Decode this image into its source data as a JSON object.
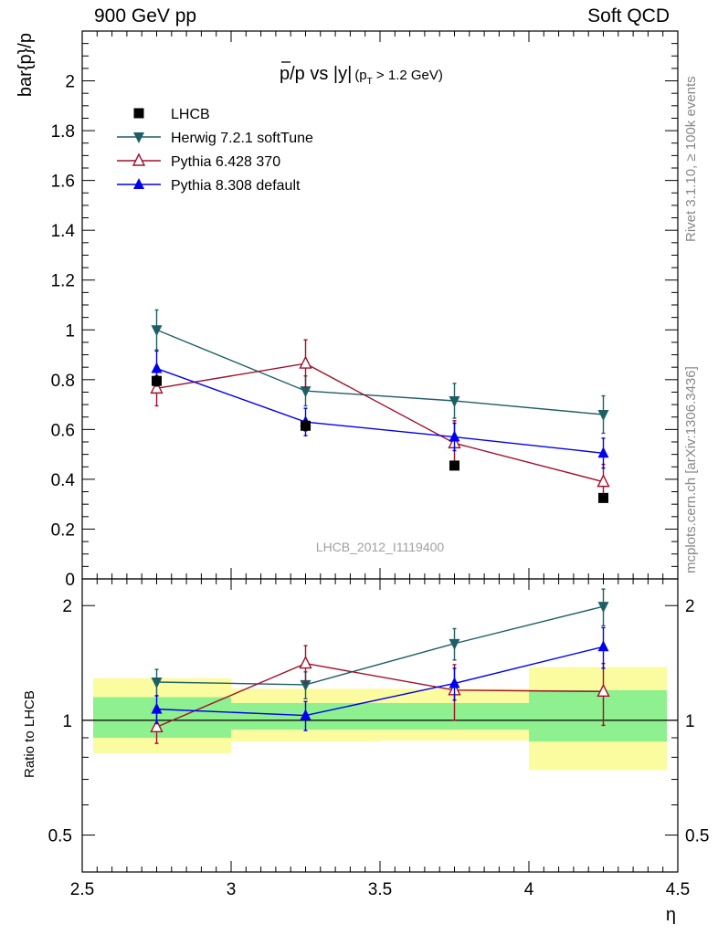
{
  "header": {
    "left": "900 GeV pp",
    "right": "Soft QCD"
  },
  "side": {
    "rivet": "Rivet 3.1.10, ≥ 100k events",
    "mcplots": "mcplots.cern.ch [arXiv:1306.3436]"
  },
  "chart_data": [
    {
      "type": "scatter",
      "title": "p̅/p vs |y|",
      "title_parts": {
        "main": "p/p vs |y|",
        "cut": "(p",
        "sub": "T",
        "cut_end": " > 1.2 GeV)"
      },
      "ylabel": "bar{p}/p",
      "xlabel": "",
      "watermark": "LHCB_2012_I1119400",
      "xlim": [
        2.5,
        4.5
      ],
      "ylim": [
        0,
        2.2
      ],
      "yticks": [
        0,
        0.2,
        0.4,
        0.6,
        0.8,
        1,
        1.2,
        1.4,
        1.6,
        1.8,
        2
      ],
      "ytick_labels": [
        "0",
        "0.2",
        "0.4",
        "0.6",
        "0.8",
        "1",
        "1.2",
        "1.4",
        "1.6",
        "1.8",
        "2"
      ],
      "legend_position": "top-left",
      "series": [
        {
          "name": "LHCB",
          "color": "#000000",
          "marker": "square",
          "x": [
            2.75,
            3.25,
            3.75,
            4.25
          ],
          "y": [
            0.795,
            0.615,
            0.455,
            0.325
          ],
          "err": [
            0.02,
            0.02,
            0.015,
            0.015
          ]
        },
        {
          "name": "Herwig 7.2.1 softTune",
          "color": "#1e5f66",
          "marker": "triangle-down",
          "x": [
            2.75,
            3.25,
            3.75,
            4.25
          ],
          "y": [
            1.0,
            0.755,
            0.715,
            0.66
          ],
          "err": [
            0.08,
            0.06,
            0.07,
            0.075
          ]
        },
        {
          "name": "Pythia 6.428 370",
          "color": "#a0102a",
          "marker": "triangle-up-open",
          "x": [
            2.75,
            3.25,
            3.75,
            4.25
          ],
          "y": [
            0.765,
            0.865,
            0.545,
            0.39
          ],
          "err": [
            0.07,
            0.095,
            0.09,
            0.07
          ]
        },
        {
          "name": "Pythia 8.308 default",
          "color": "#0000ee",
          "marker": "triangle-up",
          "x": [
            2.75,
            3.25,
            3.75,
            4.25
          ],
          "y": [
            0.845,
            0.63,
            0.57,
            0.505
          ],
          "err": [
            0.07,
            0.055,
            0.055,
            0.06
          ]
        }
      ]
    },
    {
      "type": "scatter",
      "title": "",
      "ylabel": "Ratio to LHCB",
      "xlabel": "η",
      "xlim": [
        2.5,
        4.5
      ],
      "ylim": [
        0.4,
        2.35
      ],
      "y_scale": "log",
      "xticks": [
        2.5,
        3,
        3.5,
        4,
        4.5
      ],
      "xtick_labels": [
        "2.5",
        "3",
        "3.5",
        "4",
        "4.5"
      ],
      "yticks": [
        0.5,
        1,
        2
      ],
      "ytick_labels": [
        "0.5",
        "1",
        "2"
      ],
      "reference_line": 1,
      "bands": [
        {
          "x": [
            2.5,
            3.0
          ],
          "inner": [
            0.9,
            1.15
          ],
          "outer": [
            0.82,
            1.29
          ]
        },
        {
          "x": [
            3.0,
            3.5
          ],
          "inner": [
            0.945,
            1.11
          ],
          "outer": [
            0.88,
            1.21
          ]
        },
        {
          "x": [
            3.5,
            4.0
          ],
          "inner": [
            0.945,
            1.11
          ],
          "outer": [
            0.885,
            1.21
          ]
        },
        {
          "x": [
            4.0,
            4.5
          ],
          "inner": [
            0.88,
            1.2
          ],
          "outer": [
            0.74,
            1.38
          ]
        }
      ],
      "band_colors": {
        "inner": "#8ef08e",
        "outer": "#fbfba0"
      },
      "series": [
        {
          "name": "Herwig 7.2.1 softTune",
          "color": "#1e5f66",
          "marker": "triangle-down",
          "x": [
            2.75,
            3.25,
            3.75,
            4.25
          ],
          "y": [
            1.26,
            1.24,
            1.59,
            1.99
          ],
          "err": [
            0.1,
            0.1,
            0.15,
            0.22
          ]
        },
        {
          "name": "Pythia 6.428 370",
          "color": "#a0102a",
          "marker": "triangle-up-open",
          "x": [
            2.75,
            3.25,
            3.75,
            4.25
          ],
          "y": [
            0.96,
            1.41,
            1.2,
            1.19
          ],
          "err": [
            0.09,
            0.16,
            0.2,
            0.22
          ]
        },
        {
          "name": "Pythia 8.308 default",
          "color": "#0000ee",
          "marker": "triangle-up",
          "x": [
            2.75,
            3.25,
            3.75,
            4.25
          ],
          "y": [
            1.07,
            1.03,
            1.25,
            1.56
          ],
          "err": [
            0.09,
            0.09,
            0.12,
            0.19
          ]
        }
      ]
    }
  ]
}
